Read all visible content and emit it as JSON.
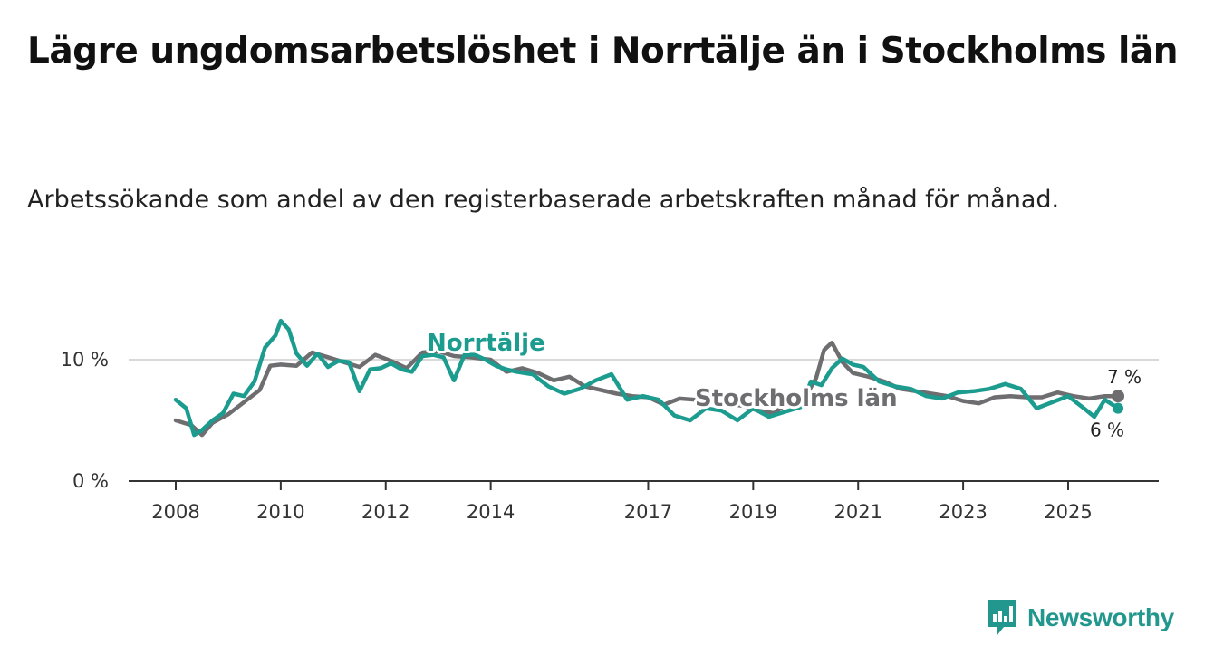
{
  "title": "Lägre ungdomsarbetslöshet i Norrtälje än i Stockholms län",
  "subtitle": "Arbetssökande som andel av den registerbaserade arbetskraften månad för månad.",
  "brand": {
    "name": "Newsworthy",
    "icon": "newsworthy-chart-icon",
    "color": "#22978d"
  },
  "chart_data": {
    "type": "line",
    "title": "Lägre ungdomsarbetslöshet i Norrtälje än i Stockholms län",
    "xlabel": "",
    "ylabel": "",
    "xlim": [
      2007.9,
      2025.95
    ],
    "ylim": [
      0,
      12
    ],
    "grid": true,
    "x_ticks": [
      {
        "value": 2008,
        "label": "2008"
      },
      {
        "value": 2010,
        "label": "2010"
      },
      {
        "value": 2012,
        "label": "2012"
      },
      {
        "value": 2014,
        "label": "2014"
      },
      {
        "value": 2017,
        "label": "2017"
      },
      {
        "value": 2019,
        "label": "2019"
      },
      {
        "value": 2021,
        "label": "2021"
      },
      {
        "value": 2023,
        "label": "2023"
      },
      {
        "value": 2025,
        "label": "2025"
      }
    ],
    "y_ticks": [
      {
        "value": 0,
        "label": "0 %"
      },
      {
        "value": 10,
        "label": "10 %"
      }
    ],
    "series": [
      {
        "name": "Stockholms län",
        "label": "Stockholms län",
        "color": "#6e6d70",
        "end_label": "7 %",
        "x": [
          2008.0,
          2008.3,
          2008.5,
          2008.7,
          2009.0,
          2009.3,
          2009.6,
          2009.8,
          2010.0,
          2010.3,
          2010.6,
          2010.9,
          2011.2,
          2011.5,
          2011.8,
          2012.1,
          2012.4,
          2012.7,
          2013.0,
          2013.3,
          2013.6,
          2014.0,
          2014.3,
          2014.6,
          2014.9,
          2015.2,
          2015.5,
          2015.8,
          2016.1,
          2016.4,
          2016.7,
          2017.0,
          2017.3,
          2017.6,
          2017.9,
          2018.2,
          2018.5,
          2018.8,
          2019.1,
          2019.4,
          2019.7,
          2020.0,
          2020.2,
          2020.35,
          2020.5,
          2020.7,
          2020.9,
          2021.2,
          2021.5,
          2021.8,
          2022.1,
          2022.4,
          2022.7,
          2023.0,
          2023.3,
          2023.6,
          2023.9,
          2024.2,
          2024.5,
          2024.8,
          2025.1,
          2025.4,
          2025.7,
          2025.95
        ],
        "values": [
          5.0,
          4.6,
          3.8,
          4.8,
          5.5,
          6.5,
          7.5,
          9.5,
          9.6,
          9.5,
          10.6,
          10.2,
          9.8,
          9.4,
          10.4,
          9.9,
          9.3,
          10.6,
          10.7,
          10.3,
          10.2,
          10.0,
          9.0,
          9.3,
          8.9,
          8.3,
          8.6,
          7.8,
          7.5,
          7.2,
          7.0,
          6.9,
          6.3,
          6.8,
          6.7,
          6.6,
          6.4,
          6.2,
          5.8,
          5.6,
          6.6,
          7.0,
          8.5,
          10.8,
          11.4,
          9.8,
          8.9,
          8.6,
          8.2,
          7.6,
          7.4,
          7.2,
          7.0,
          6.6,
          6.4,
          6.9,
          7.0,
          6.9,
          6.9,
          7.3,
          7.0,
          6.8,
          7.0,
          7.0
        ]
      },
      {
        "name": "Norrtälje",
        "label": "Norrtälje",
        "color": "#1b9c8f",
        "end_label": "6 %",
        "x": [
          2008.0,
          2008.2,
          2008.35,
          2008.5,
          2008.7,
          2008.9,
          2009.1,
          2009.3,
          2009.5,
          2009.7,
          2009.9,
          2010.0,
          2010.15,
          2010.3,
          2010.5,
          2010.7,
          2010.9,
          2011.1,
          2011.3,
          2011.5,
          2011.7,
          2011.9,
          2012.1,
          2012.3,
          2012.5,
          2012.7,
          2012.9,
          2013.1,
          2013.3,
          2013.5,
          2013.7,
          2013.9,
          2014.1,
          2014.3,
          2014.5,
          2014.8,
          2015.1,
          2015.4,
          2015.7,
          2016.0,
          2016.3,
          2016.6,
          2016.9,
          2017.2,
          2017.5,
          2017.8,
          2018.1,
          2018.4,
          2018.7,
          2019.0,
          2019.3,
          2019.6,
          2019.9,
          2020.1,
          2020.3,
          2020.5,
          2020.7,
          2020.9,
          2021.1,
          2021.4,
          2021.7,
          2022.0,
          2022.3,
          2022.6,
          2022.9,
          2023.2,
          2023.5,
          2023.8,
          2024.1,
          2024.4,
          2024.7,
          2025.0,
          2025.3,
          2025.5,
          2025.7,
          2025.95
        ],
        "values": [
          6.7,
          6.0,
          3.8,
          4.2,
          5.0,
          5.6,
          7.2,
          7.0,
          8.2,
          11.0,
          12.0,
          13.2,
          12.5,
          10.5,
          9.5,
          10.5,
          9.4,
          9.9,
          9.8,
          7.4,
          9.2,
          9.3,
          9.7,
          9.2,
          9.0,
          10.3,
          10.4,
          10.2,
          8.3,
          10.4,
          10.4,
          10.0,
          9.5,
          9.2,
          9.0,
          8.8,
          7.8,
          7.2,
          7.6,
          8.3,
          8.8,
          6.7,
          7.0,
          6.7,
          5.4,
          5.0,
          6.0,
          5.8,
          5.0,
          6.0,
          5.3,
          5.7,
          6.1,
          8.2,
          7.9,
          9.3,
          10.1,
          9.6,
          9.4,
          8.2,
          7.8,
          7.6,
          7.0,
          6.8,
          7.3,
          7.4,
          7.6,
          8.0,
          7.6,
          6.0,
          6.5,
          7.0,
          6.0,
          5.3,
          6.7,
          6.0
        ]
      }
    ]
  }
}
